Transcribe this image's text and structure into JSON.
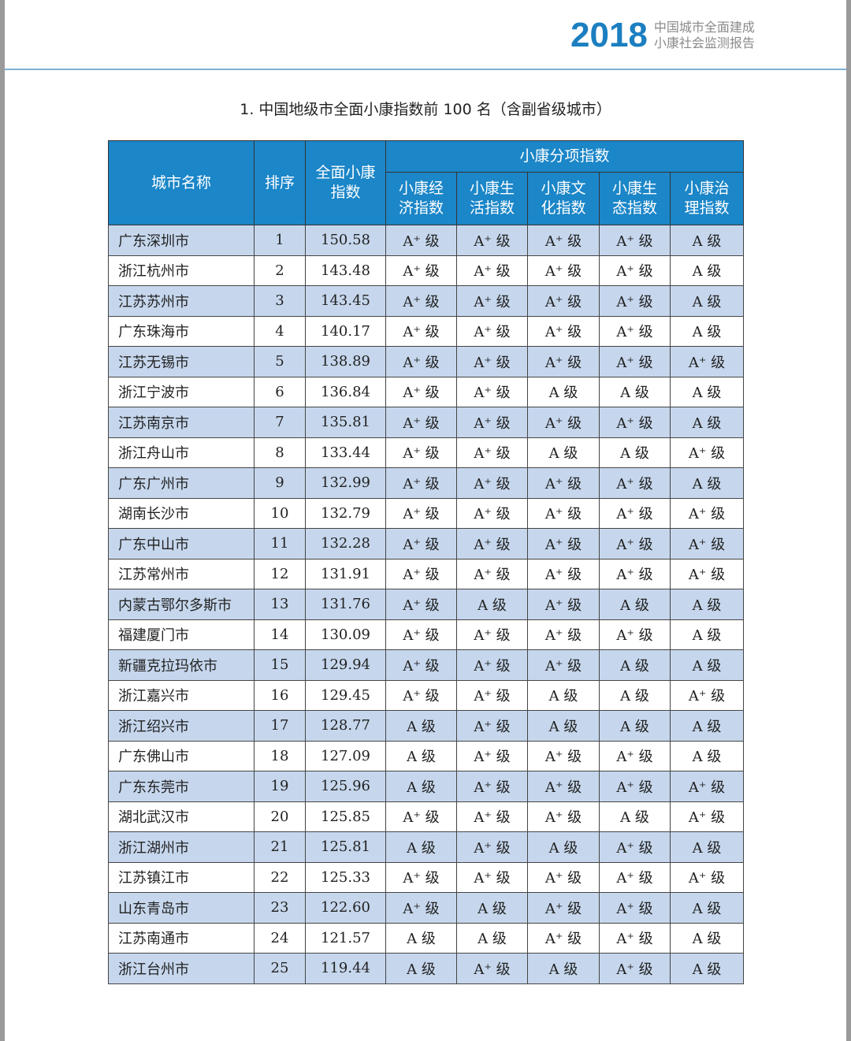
{
  "header": {
    "year": "2018",
    "subtitle_line1": "中国城市全面建成",
    "subtitle_line2": "小康社会监测报告"
  },
  "title": "1. 中国地级市全面小康指数前 100 名（含副省级城市）",
  "table": {
    "headers": {
      "city": "城市名称",
      "rank": "排序",
      "index": "全面小康指数",
      "group": "小康分项指数",
      "sub": [
        "小康经济指数",
        "小康生活指数",
        "小康文化指数",
        "小康生态指数",
        "小康治理指数"
      ]
    },
    "rows": [
      [
        "广东深圳市",
        "1",
        "150.58",
        "A⁺ 级",
        "A⁺ 级",
        "A⁺ 级",
        "A⁺ 级",
        "A 级"
      ],
      [
        "浙江杭州市",
        "2",
        "143.48",
        "A⁺ 级",
        "A⁺ 级",
        "A⁺ 级",
        "A⁺ 级",
        "A 级"
      ],
      [
        "江苏苏州市",
        "3",
        "143.45",
        "A⁺ 级",
        "A⁺ 级",
        "A⁺ 级",
        "A⁺ 级",
        "A 级"
      ],
      [
        "广东珠海市",
        "4",
        "140.17",
        "A⁺ 级",
        "A⁺ 级",
        "A⁺ 级",
        "A⁺ 级",
        "A 级"
      ],
      [
        "江苏无锡市",
        "5",
        "138.89",
        "A⁺ 级",
        "A⁺ 级",
        "A⁺ 级",
        "A⁺ 级",
        "A⁺ 级"
      ],
      [
        "浙江宁波市",
        "6",
        "136.84",
        "A⁺ 级",
        "A⁺ 级",
        "A 级",
        "A 级",
        "A 级"
      ],
      [
        "江苏南京市",
        "7",
        "135.81",
        "A⁺ 级",
        "A⁺ 级",
        "A⁺ 级",
        "A⁺ 级",
        "A 级"
      ],
      [
        "浙江舟山市",
        "8",
        "133.44",
        "A⁺ 级",
        "A⁺ 级",
        "A 级",
        "A 级",
        "A⁺ 级"
      ],
      [
        "广东广州市",
        "9",
        "132.99",
        "A⁺ 级",
        "A⁺ 级",
        "A⁺ 级",
        "A⁺ 级",
        "A 级"
      ],
      [
        "湖南长沙市",
        "10",
        "132.79",
        "A⁺ 级",
        "A⁺ 级",
        "A⁺ 级",
        "A⁺ 级",
        "A⁺ 级"
      ],
      [
        "广东中山市",
        "11",
        "132.28",
        "A⁺ 级",
        "A⁺ 级",
        "A⁺ 级",
        "A⁺ 级",
        "A⁺ 级"
      ],
      [
        "江苏常州市",
        "12",
        "131.91",
        "A⁺ 级",
        "A⁺ 级",
        "A⁺ 级",
        "A⁺ 级",
        "A⁺ 级"
      ],
      [
        "内蒙古鄂尔多斯市",
        "13",
        "131.76",
        "A⁺ 级",
        "A 级",
        "A⁺ 级",
        "A 级",
        "A 级"
      ],
      [
        "福建厦门市",
        "14",
        "130.09",
        "A⁺ 级",
        "A⁺ 级",
        "A⁺ 级",
        "A⁺ 级",
        "A 级"
      ],
      [
        "新疆克拉玛依市",
        "15",
        "129.94",
        "A⁺ 级",
        "A⁺ 级",
        "A⁺ 级",
        "A 级",
        "A 级"
      ],
      [
        "浙江嘉兴市",
        "16",
        "129.45",
        "A⁺ 级",
        "A⁺ 级",
        "A 级",
        "A 级",
        "A⁺ 级"
      ],
      [
        "浙江绍兴市",
        "17",
        "128.77",
        "A 级",
        "A⁺ 级",
        "A 级",
        "A 级",
        "A 级"
      ],
      [
        "广东佛山市",
        "18",
        "127.09",
        "A 级",
        "A⁺ 级",
        "A⁺ 级",
        "A⁺ 级",
        "A 级"
      ],
      [
        "广东东莞市",
        "19",
        "125.96",
        "A 级",
        "A⁺ 级",
        "A⁺ 级",
        "A⁺ 级",
        "A⁺ 级"
      ],
      [
        "湖北武汉市",
        "20",
        "125.85",
        "A⁺ 级",
        "A⁺ 级",
        "A⁺ 级",
        "A 级",
        "A⁺ 级"
      ],
      [
        "浙江湖州市",
        "21",
        "125.81",
        "A 级",
        "A⁺ 级",
        "A 级",
        "A⁺ 级",
        "A 级"
      ],
      [
        "江苏镇江市",
        "22",
        "125.33",
        "A⁺ 级",
        "A⁺ 级",
        "A⁺ 级",
        "A⁺ 级",
        "A⁺ 级"
      ],
      [
        "山东青岛市",
        "23",
        "122.60",
        "A⁺ 级",
        "A 级",
        "A⁺ 级",
        "A⁺ 级",
        "A 级"
      ],
      [
        "江苏南通市",
        "24",
        "121.57",
        "A 级",
        "A 级",
        "A⁺ 级",
        "A⁺ 级",
        "A 级"
      ],
      [
        "浙江台州市",
        "25",
        "119.44",
        "A 级",
        "A⁺ 级",
        "A 级",
        "A⁺ 级",
        "A 级"
      ]
    ]
  },
  "colors": {
    "brand": "#1b7fc0",
    "header_bg": "#1b86c8",
    "row_alt": "#c6d7ed"
  }
}
